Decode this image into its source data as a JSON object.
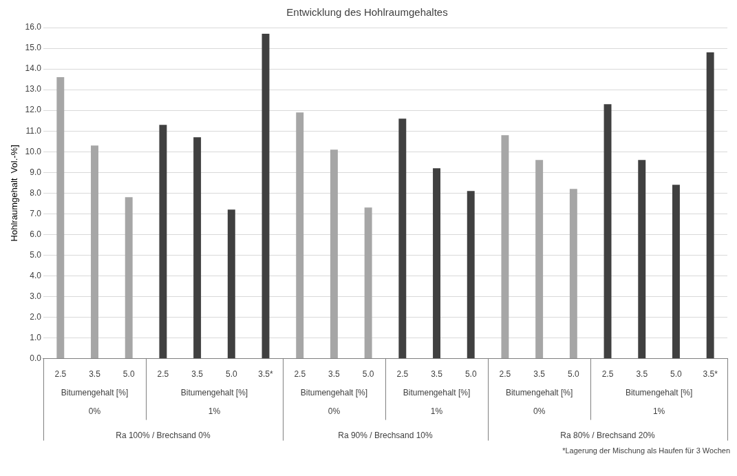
{
  "chart_data": {
    "type": "bar",
    "title": "Entwicklung des Hohlraumgehaltes",
    "ylabel": "Hohlraumgehalt  Vol.-%]",
    "categories": [
      "2.5",
      "3.5",
      "5.0",
      "2.5",
      "3.5",
      "5.0",
      "3.5*",
      "2.5",
      "3.5",
      "5.0",
      "2.5",
      "3.5",
      "5.0",
      "2.5",
      "3.5",
      "5.0",
      "2.5",
      "3.5",
      "5.0",
      "3.5*"
    ],
    "series": [
      {
        "color": "#a6a6a6",
        "values": [
          13.6,
          10.3,
          7.8,
          null,
          null,
          null,
          null,
          11.9,
          10.1,
          7.3,
          null,
          null,
          null,
          10.8,
          9.6,
          8.2,
          null,
          null,
          null,
          null
        ]
      },
      {
        "color": "#404040",
        "values": [
          null,
          null,
          null,
          11.3,
          10.7,
          7.2,
          15.7,
          null,
          null,
          null,
          11.6,
          9.2,
          8.1,
          null,
          null,
          null,
          12.3,
          9.6,
          8.4,
          14.8
        ]
      }
    ],
    "ylim": [
      0,
      16
    ],
    "yticks": [
      {
        "value": 0,
        "label": "0.0"
      },
      {
        "value": 1,
        "label": "1.0"
      },
      {
        "value": 2,
        "label": "2.0"
      },
      {
        "value": 3,
        "label": "3.0"
      },
      {
        "value": 4,
        "label": "4.0"
      },
      {
        "value": 5,
        "label": "5.0"
      },
      {
        "value": 6,
        "label": "6.0"
      },
      {
        "value": 7,
        "label": "7.0"
      },
      {
        "value": 8,
        "label": "8.0"
      },
      {
        "value": 9,
        "label": "9.0"
      },
      {
        "value": 10,
        "label": "10.0"
      },
      {
        "value": 11,
        "label": "11.0"
      },
      {
        "value": 12,
        "label": "12.0"
      },
      {
        "value": 13,
        "label": "13.0"
      },
      {
        "value": 14,
        "label": "14.0"
      },
      {
        "value": 15,
        "label": "15.0"
      },
      {
        "value": 16,
        "label": "16.0"
      }
    ],
    "grid": "y",
    "annotations": [
      "Bitumengehalt [%]",
      "0%",
      "Bitumengehalt [%]",
      "1%",
      "Bitumengehalt [%]",
      "0%",
      "Bitumengehalt [%]",
      "1%",
      "Bitumengehalt [%]",
      "0%",
      "Bitumengehalt [%]",
      "1%",
      "Ra 100% / Brechsand 0%",
      "Ra 90% / Brechsand 10%",
      "Ra 80% / Brechsand 20%",
      "*Lagerung der Mischung als Haufen für 3 Wochen"
    ]
  }
}
